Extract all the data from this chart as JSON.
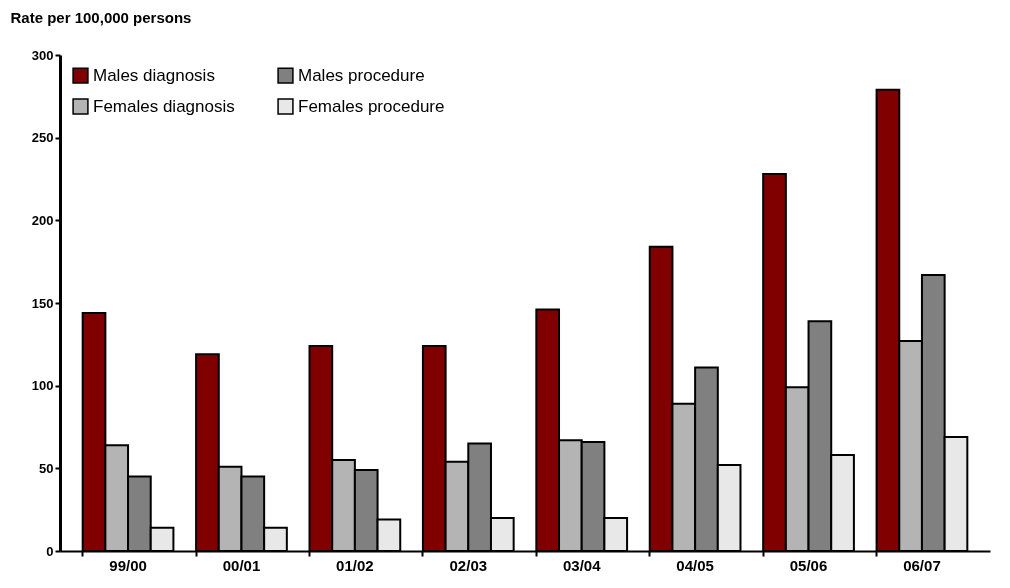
{
  "chart_data": {
    "type": "bar",
    "ylabel": "Rate per 100,000 persons",
    "categories": [
      "99/00",
      "00/01",
      "01/02",
      "02/03",
      "03/04",
      "04/05",
      "05/06",
      "06/07"
    ],
    "series": [
      {
        "name": "Males diagnosis",
        "color": "#800000",
        "values": [
          144,
          119,
          124,
          124,
          146,
          184,
          228,
          279
        ]
      },
      {
        "name": "Females diagnosis",
        "color": "#b4b4b4",
        "values": [
          64,
          51,
          55,
          54,
          67,
          89,
          99,
          127
        ]
      },
      {
        "name": "Males procedure",
        "color": "#808080",
        "values": [
          45,
          45,
          49,
          65,
          66,
          111,
          139,
          167
        ]
      },
      {
        "name": "Females procedure",
        "color": "#e8e8e8",
        "values": [
          14,
          14,
          19,
          20,
          20,
          52,
          58,
          69
        ]
      }
    ],
    "ylim": [
      0,
      300
    ],
    "yticks": [
      0,
      50,
      100,
      150,
      200,
      250,
      300
    ],
    "grid": false,
    "legend": "top left"
  }
}
